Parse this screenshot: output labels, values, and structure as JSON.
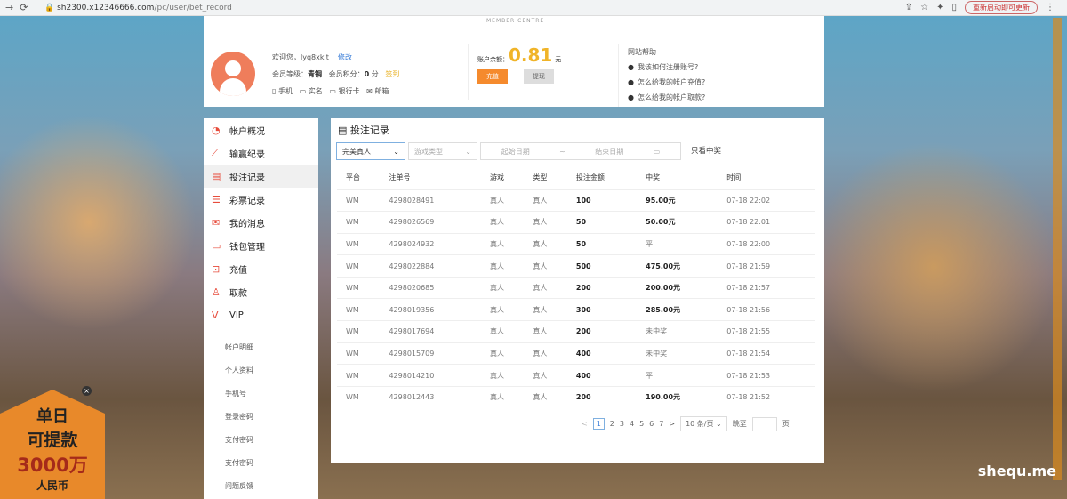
{
  "browser": {
    "url_host": "sh2300.x12346666.com",
    "url_path": "/pc/user/bet_record",
    "update_label": "重新启动即可更新"
  },
  "header": {
    "member_centre": "MEMBER CENTRE",
    "welcome": "欢迎您，",
    "username": "lyq8xklt",
    "edit": "修改",
    "level_label": "会员等级：",
    "level": "青铜",
    "points_label": "会员积分：",
    "points": "0",
    "points_unit": "分",
    "sign_in": "签到",
    "verify": [
      "手机",
      "实名",
      "银行卡",
      "邮箱"
    ],
    "balance_label": "账户余额：",
    "balance": "0.81",
    "balance_unit": "元",
    "deposit": "充值",
    "withdraw": "提现",
    "help_title": "网站帮助",
    "help": [
      "我该如何注册账号?",
      "怎么给我的帐户充值?",
      "怎么给我的帐户取款?"
    ]
  },
  "sidebar": {
    "items": [
      {
        "icon": "pie-chart-icon",
        "label": "帐户概况"
      },
      {
        "icon": "trend-icon",
        "label": "输赢纪录"
      },
      {
        "icon": "document-icon",
        "label": "投注记录"
      },
      {
        "icon": "list-icon",
        "label": "彩票记录"
      },
      {
        "icon": "mail-icon",
        "label": "我的消息"
      },
      {
        "icon": "wallet-icon",
        "label": "钱包管理"
      },
      {
        "icon": "deposit-icon",
        "label": "充值"
      },
      {
        "icon": "withdraw-icon",
        "label": "取款"
      },
      {
        "icon": "vip-icon",
        "label": "VIP"
      }
    ],
    "sub": [
      "帐户明细",
      "个人资料",
      "手机号",
      "登录密码",
      "支付密码",
      "支付密码",
      "问题反馈"
    ]
  },
  "main": {
    "title": "投注记录",
    "filter_platform": "完美真人",
    "filter_game_type": "游戏类型",
    "start_date": "起始日期",
    "date_sep": "~",
    "end_date": "结束日期",
    "only_win": "只看中奖",
    "columns": [
      "平台",
      "注单号",
      "游戏",
      "类型",
      "投注金额",
      "中奖",
      "时间"
    ],
    "rows": [
      [
        "WM",
        "4298028491",
        "真人",
        "真人",
        "100",
        "95.00元",
        "07-18 22:02"
      ],
      [
        "WM",
        "4298026569",
        "真人",
        "真人",
        "50",
        "50.00元",
        "07-18 22:01"
      ],
      [
        "WM",
        "4298024932",
        "真人",
        "真人",
        "50",
        "平",
        "07-18 22:00"
      ],
      [
        "WM",
        "4298022884",
        "真人",
        "真人",
        "500",
        "475.00元",
        "07-18 21:59"
      ],
      [
        "WM",
        "4298020685",
        "真人",
        "真人",
        "200",
        "200.00元",
        "07-18 21:57"
      ],
      [
        "WM",
        "4298019356",
        "真人",
        "真人",
        "300",
        "285.00元",
        "07-18 21:56"
      ],
      [
        "WM",
        "4298017694",
        "真人",
        "真人",
        "200",
        "未中奖",
        "07-18 21:55"
      ],
      [
        "WM",
        "4298015709",
        "真人",
        "真人",
        "400",
        "未中奖",
        "07-18 21:54"
      ],
      [
        "WM",
        "4298014210",
        "真人",
        "真人",
        "400",
        "平",
        "07-18 21:53"
      ],
      [
        "WM",
        "4298012443",
        "真人",
        "真人",
        "200",
        "190.00元",
        "07-18 21:52"
      ]
    ],
    "pagination": {
      "prev": "<",
      "pages": [
        "1",
        "2",
        "3",
        "4",
        "5",
        "6",
        "7"
      ],
      "current": "1",
      "next": ">",
      "page_size": "10 条/页",
      "jump_label": "跳至",
      "page_unit": "页"
    }
  },
  "promo": {
    "line1": "单日",
    "line2": "可提款",
    "line3": "3000万",
    "line4": "人民币"
  },
  "watermark": "shequ.me"
}
